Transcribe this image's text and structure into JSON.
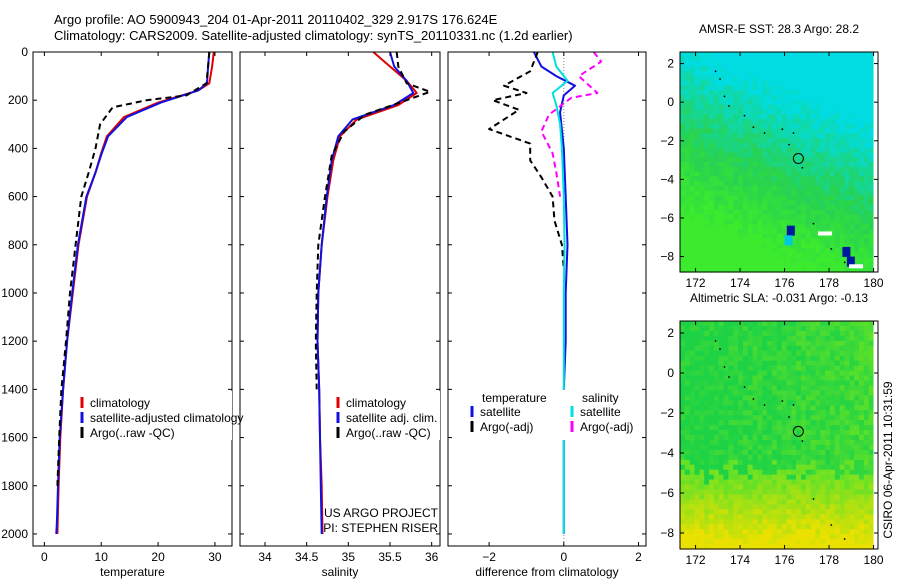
{
  "header": {
    "line1": "Argo profile: AO 5900943_204 01-Apr-2011 20110402_329 2.917S 176.624E",
    "line2": "Climatology: CARS2009. Satellite-adjusted climatology: synTS_20110331.nc (1.2d earlier)"
  },
  "footer": {
    "stamp": "CSIRO 06-Apr-2011 10:31:59"
  },
  "colors": {
    "climatology": "#e00000",
    "satellite": "#1010e0",
    "argo": "#000000",
    "diff_satellite": "#00e0e0",
    "diff_argo": "#ff00ff"
  },
  "chart_data": [
    {
      "id": "temperature",
      "type": "line",
      "xlabel": "temperature",
      "ylabel": "",
      "xlim": [
        -2,
        33
      ],
      "ylim": [
        2050,
        0
      ],
      "y_reversed": true,
      "xticks": [
        0,
        10,
        20,
        30
      ],
      "yticks": [
        0,
        200,
        400,
        600,
        800,
        1000,
        1200,
        1400,
        1600,
        1800,
        2000
      ],
      "legend": [
        {
          "label": "climatology",
          "color": "#e00000"
        },
        {
          "label": "satellite-adjusted climatology",
          "color": "#1010e0"
        },
        {
          "label": "Argo(..raw -QC)",
          "color": "#000000"
        }
      ],
      "series": [
        {
          "name": "climatology",
          "color": "#e00000",
          "dash": "",
          "x": [
            29.8,
            29.5,
            29.0,
            27.0,
            20.0,
            14.0,
            11.0,
            10.0,
            9.0,
            7.5,
            6.0,
            5.0,
            4.0,
            3.3,
            2.8,
            2.5,
            2.3
          ],
          "y": [
            0,
            60,
            130,
            160,
            210,
            270,
            350,
            420,
            500,
            600,
            800,
            1000,
            1200,
            1400,
            1600,
            1800,
            2000
          ]
        },
        {
          "name": "satellite-adjusted climatology",
          "color": "#1010e0",
          "dash": "",
          "x": [
            29.0,
            28.8,
            28.6,
            27.0,
            20.5,
            14.5,
            11.2,
            10.1,
            9.0,
            7.4,
            5.9,
            4.9,
            4.0,
            3.3,
            2.7,
            2.4,
            2.2,
            2.1
          ],
          "y": [
            0,
            60,
            130,
            160,
            210,
            270,
            350,
            420,
            500,
            600,
            800,
            1000,
            1200,
            1400,
            1600,
            1800,
            1950,
            2000
          ]
        },
        {
          "name": "Argo(..raw -QC)",
          "color": "#000000",
          "dash": "6,4",
          "x": [
            29.0,
            28.8,
            28.5,
            25.0,
            18.0,
            12.0,
            9.8,
            9.0,
            7.8,
            6.5,
            5.5,
            4.5,
            3.8,
            3.0,
            2.6,
            2.3
          ],
          "y": [
            0,
            60,
            130,
            180,
            200,
            230,
            300,
            400,
            500,
            600,
            800,
            1000,
            1200,
            1400,
            1600,
            1800
          ]
        }
      ]
    },
    {
      "id": "salinity",
      "type": "line",
      "xlabel": "salinity",
      "ylabel": "",
      "xlim": [
        33.7,
        36.1
      ],
      "ylim": [
        2050,
        0
      ],
      "y_reversed": true,
      "xticks": [
        34,
        34.5,
        35,
        35.5,
        36
      ],
      "xticklabels": [
        "34",
        "34.5",
        "35",
        "35.5",
        "36"
      ],
      "yticks": [
        0,
        200,
        400,
        600,
        800,
        1000,
        1200,
        1400,
        1600,
        1800,
        2000
      ],
      "legend": [
        {
          "label": "climatology",
          "color": "#e00000"
        },
        {
          "label": "satellite adj. clim.",
          "color": "#1010e0"
        },
        {
          "label": "Argo(..raw -QC)",
          "color": "#000000"
        }
      ],
      "series": [
        {
          "name": "climatology",
          "color": "#e00000",
          "dash": "",
          "x": [
            35.3,
            35.5,
            35.7,
            35.82,
            35.6,
            35.1,
            34.9,
            34.82,
            34.75,
            34.68,
            34.64,
            34.63,
            34.65,
            34.66,
            34.68,
            34.69
          ],
          "y": [
            0,
            60,
            120,
            170,
            220,
            280,
            350,
            450,
            600,
            800,
            1000,
            1200,
            1400,
            1600,
            1800,
            2000
          ]
        },
        {
          "name": "satellite adj. clim.",
          "color": "#1010e0",
          "dash": "",
          "x": [
            35.5,
            35.55,
            35.7,
            35.78,
            35.55,
            35.05,
            34.88,
            34.8,
            34.74,
            34.68,
            34.64,
            34.63,
            34.65,
            34.66,
            34.67,
            34.68
          ],
          "y": [
            0,
            60,
            120,
            170,
            220,
            280,
            350,
            450,
            600,
            800,
            1000,
            1200,
            1400,
            1600,
            1800,
            2000
          ]
        },
        {
          "name": "Argo(..raw -QC)",
          "color": "#000000",
          "dash": "6,4",
          "x": [
            35.58,
            35.6,
            35.7,
            35.98,
            35.7,
            35.2,
            34.95,
            34.8,
            34.72,
            34.64,
            34.62,
            34.61,
            34.62
          ],
          "y": [
            0,
            60,
            130,
            165,
            200,
            260,
            330,
            430,
            600,
            800,
            1000,
            1200,
            1400
          ]
        }
      ],
      "annotation": [
        "US ARGO PROJECT",
        "PI: STEPHEN RISER"
      ]
    },
    {
      "id": "difference",
      "type": "line",
      "xlabel": "difference from climatology",
      "ylabel": "",
      "xlim": [
        -3.1,
        2.2
      ],
      "ylim": [
        2050,
        0
      ],
      "y_reversed": true,
      "xticks": [
        -2,
        0,
        2
      ],
      "yticks": [
        0,
        200,
        400,
        600,
        800,
        1000,
        1200,
        1400,
        1600,
        1800,
        2000
      ],
      "legend_groups": [
        {
          "title": "temperature",
          "items": [
            {
              "label": "satellite",
              "color": "#1010e0"
            },
            {
              "label": "Argo(-adj)",
              "color": "#000000"
            }
          ]
        },
        {
          "title": "salinity",
          "items": [
            {
              "label": "satellite",
              "color": "#00e0e0"
            },
            {
              "label": "Argo(-adj)",
              "color": "#ff00ff"
            }
          ]
        }
      ],
      "series": [
        {
          "name": "temperature satellite",
          "color": "#1010e0",
          "dash": "",
          "x": [
            -0.8,
            -0.6,
            -0.2,
            0.3,
            0.0,
            -0.1,
            0.0,
            0.05,
            0.1,
            0.05,
            0.05,
            0.0,
            0.0,
            0.0
          ],
          "y": [
            0,
            60,
            100,
            140,
            180,
            250,
            400,
            600,
            800,
            1000,
            1200,
            1400,
            1700,
            2000
          ]
        },
        {
          "name": "temperature Argo(-adj)",
          "color": "#000000",
          "dash": "6,4",
          "x": [
            -0.7,
            -0.9,
            -1.6,
            -1.0,
            -1.9,
            -1.2,
            -2.0,
            -0.9,
            -0.9,
            -0.6,
            -0.3,
            -0.25,
            -0.05,
            0.0
          ],
          "y": [
            0,
            80,
            140,
            170,
            200,
            240,
            320,
            380,
            450,
            520,
            600,
            700,
            800,
            900
          ]
        },
        {
          "name": "salinity satellite",
          "color": "#00e0e0",
          "dash": "",
          "x": [
            -0.3,
            -0.2,
            0.1,
            -0.3,
            -0.2,
            -0.1,
            -0.05,
            0.0,
            0.02,
            0.0,
            0.0,
            0.0,
            0.0
          ],
          "y": [
            0,
            60,
            120,
            170,
            220,
            300,
            400,
            600,
            800,
            1000,
            1400,
            1800,
            2000
          ]
        },
        {
          "name": "salinity Argo(-adj)",
          "color": "#ff00ff",
          "dash": "6,4",
          "x": [
            0.8,
            1.0,
            0.4,
            0.9,
            0.2,
            -0.4,
            -0.6,
            -0.3,
            -0.2,
            -0.1
          ],
          "y": [
            0,
            40,
            100,
            170,
            190,
            260,
            330,
            420,
            500,
            600
          ]
        }
      ]
    },
    {
      "id": "sst-map",
      "type": "heatmap",
      "title": "AMSR-E SST: 28.3  Argo: 28.2",
      "xlim": [
        171.3,
        180.2
      ],
      "ylim": [
        -8.8,
        2.6
      ],
      "xticks": [
        172,
        174,
        176,
        178,
        180
      ],
      "yticks": [
        -8,
        -6,
        -4,
        -2,
        0,
        2
      ],
      "marker": {
        "x": 176.62,
        "y": -2.92
      }
    },
    {
      "id": "sla-map",
      "type": "heatmap",
      "title": "Altimetric SLA: -0.031  Argo: -0.13",
      "xlim": [
        171.3,
        180.2
      ],
      "ylim": [
        -8.8,
        2.6
      ],
      "xticks": [
        172,
        174,
        176,
        178,
        180
      ],
      "yticks": [
        -8,
        -6,
        -4,
        -2,
        0,
        2
      ],
      "marker": {
        "x": 176.62,
        "y": -2.92
      }
    }
  ]
}
